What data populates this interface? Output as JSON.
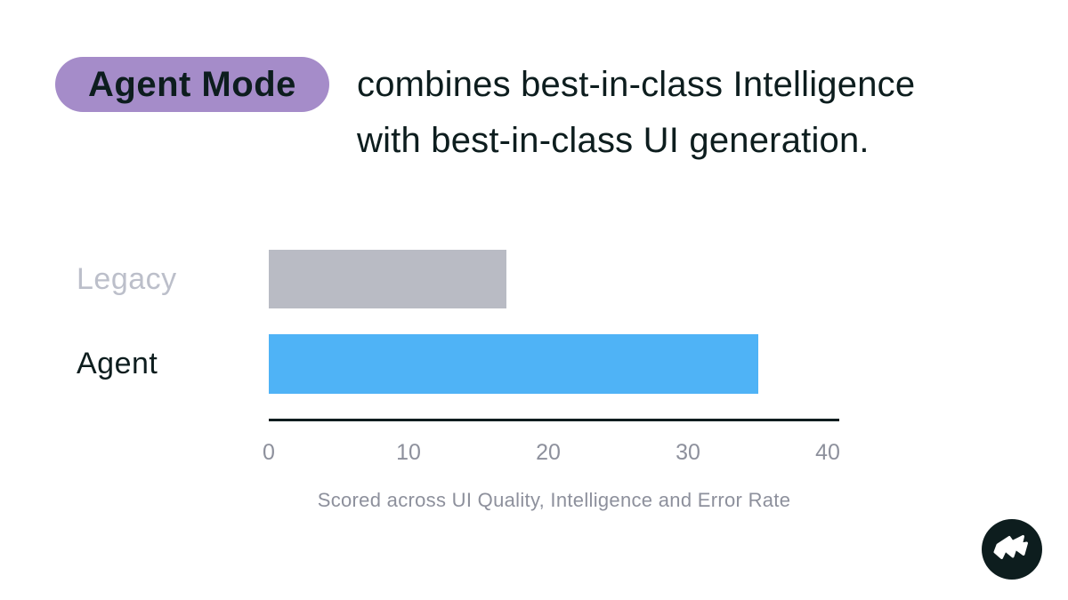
{
  "header": {
    "badge_label": "Agent Mode",
    "title_line1": "combines best-in-class Intelligence",
    "title_line2": "with best-in-class UI generation."
  },
  "chart_data": {
    "type": "bar",
    "orientation": "horizontal",
    "categories": [
      "Legacy",
      "Agent"
    ],
    "values": [
      17,
      35
    ],
    "xlim": [
      0,
      40
    ],
    "x_ticks": [
      0,
      10,
      20,
      30,
      40
    ],
    "caption": "Scored across UI Quality, Intelligence and Error Rate",
    "bar_colors": [
      "#b9bbc4",
      "#4fb3f6"
    ],
    "label_colors": [
      "#bcbfca",
      "#0d1d1e"
    ],
    "grid": false,
    "legend": "none",
    "title": "",
    "xlabel": "",
    "ylabel": ""
  },
  "colors": {
    "background": "#ffffff",
    "badge_bg": "#a58cc9",
    "text_dark": "#0d1d1e",
    "muted_gray": "#8d909c",
    "bar_gray": "#b9bbc4",
    "bar_blue": "#4fb3f6",
    "axis": "#0d1d1e",
    "logo_bg": "#0d1d1e",
    "logo_glyph": "#ffffff"
  },
  "logo": {
    "icon": "flag-icon"
  }
}
